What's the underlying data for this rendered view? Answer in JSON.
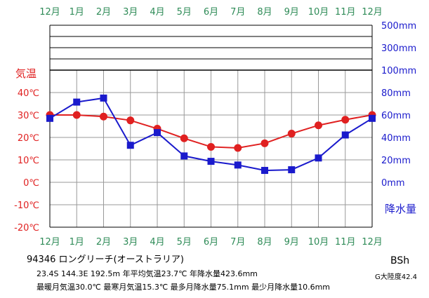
{
  "chart_data": {
    "type": "line",
    "months": [
      "12月",
      "1月",
      "2月",
      "3月",
      "4月",
      "5月",
      "6月",
      "7月",
      "8月",
      "9月",
      "10月",
      "11月",
      "12月"
    ],
    "temp_axis_title": "気温",
    "precip_axis_title": "降水量",
    "temp_ticks": [
      "40℃",
      "30℃",
      "20℃",
      "10℃",
      "0℃",
      "-10℃",
      "-20℃"
    ],
    "temp_tick_values": [
      40,
      30,
      20,
      10,
      0,
      -10,
      -20
    ],
    "precip_ticks": [
      "500mm",
      "300mm",
      "100mm",
      "80mm",
      "60mm",
      "40mm",
      "20mm",
      "0mm"
    ],
    "precip_tick_values": [
      500,
      300,
      100,
      80,
      60,
      40,
      20,
      0
    ],
    "temp_range": [
      -20,
      40
    ],
    "series": [
      {
        "key": "temperature",
        "unit": "℃",
        "color": "#e02020",
        "marker": "circle",
        "values": [
          30.0,
          30.0,
          29.3,
          27.6,
          23.9,
          19.6,
          15.8,
          15.3,
          17.4,
          21.7,
          25.4,
          27.9,
          30.0
        ]
      },
      {
        "key": "precipitation",
        "unit": "mm",
        "color": "#1a1acc",
        "marker": "square",
        "values": [
          57.0,
          71.5,
          75.1,
          33.0,
          44.3,
          23.5,
          18.7,
          15.4,
          10.6,
          11.2,
          21.7,
          42.2,
          57.0
        ]
      }
    ]
  },
  "station": {
    "title": "94346 ロングリーチ(オーストラリア)",
    "line1": "23.4S 144.3E 192.5m 年平均気温23.7℃ 年降水量423.6mm",
    "line2": "最暖月気温30.0℃ 最寒月気温15.3℃ 最多月降水量75.1mm 最少月降水量10.6mm",
    "climate": "BSh",
    "continent": "G大陸度42.4"
  }
}
